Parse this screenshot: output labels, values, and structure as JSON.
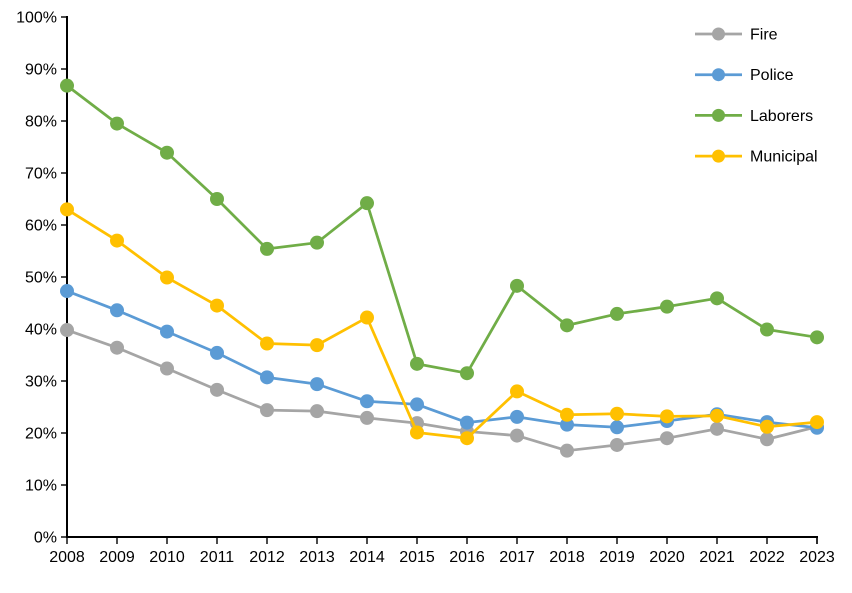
{
  "chart_data": {
    "type": "line",
    "title": "",
    "xlabel": "",
    "ylabel": "",
    "background": "#FFFFFF",
    "axis_color": "#000000",
    "grid": false,
    "legend_position": "top-right",
    "ylim": [
      0,
      100
    ],
    "y_tick_labels": [
      "0%",
      "10%",
      "20%",
      "30%",
      "40%",
      "50%",
      "60%",
      "70%",
      "80%",
      "90%",
      "100%"
    ],
    "categories": [
      "2008",
      "2009",
      "2010",
      "2011",
      "2012",
      "2013",
      "2014",
      "2015",
      "2016",
      "2017",
      "2018",
      "2019",
      "2020",
      "2021",
      "2022",
      "2023"
    ],
    "series": [
      {
        "name": "Fire",
        "color": "#A5A5A5",
        "marker": "circle",
        "values": [
          39.8,
          36.4,
          32.4,
          28.3,
          24.4,
          24.2,
          22.9,
          21.9,
          20.3,
          19.5,
          16.6,
          17.7,
          19.0,
          20.8,
          18.8,
          21.2
        ]
      },
      {
        "name": "Police",
        "color": "#5B9BD5",
        "marker": "circle",
        "values": [
          47.3,
          43.6,
          39.5,
          35.4,
          30.7,
          29.4,
          26.1,
          25.5,
          22.0,
          23.1,
          21.6,
          21.1,
          22.3,
          23.6,
          22.1,
          21.0
        ]
      },
      {
        "name": "Laborers",
        "color": "#70AD47",
        "marker": "circle",
        "values": [
          86.8,
          79.5,
          73.9,
          65.0,
          55.4,
          56.6,
          64.2,
          33.3,
          31.5,
          48.3,
          40.7,
          42.9,
          44.3,
          45.9,
          39.9,
          38.4
        ]
      },
      {
        "name": "Municipal",
        "color": "#FFC000",
        "marker": "circle",
        "values": [
          63.0,
          57.0,
          49.9,
          44.5,
          37.2,
          36.9,
          42.2,
          20.1,
          19.0,
          28.0,
          23.5,
          23.7,
          23.2,
          23.3,
          21.2,
          22.1
        ]
      }
    ],
    "legend": {
      "items": [
        "Fire",
        "Police",
        "Laborers",
        "Municipal"
      ]
    }
  }
}
